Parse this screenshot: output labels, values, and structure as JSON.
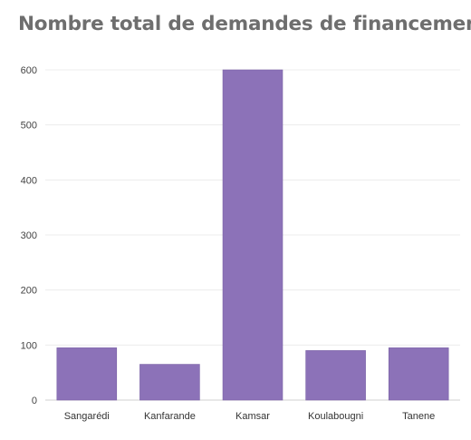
{
  "chart_data": {
    "type": "bar",
    "title": "Nombre total de demandes de financement",
    "categories": [
      "Sangarédi",
      "Kanfarande",
      "Kamsar",
      "Koulabougni",
      "Tanene"
    ],
    "values": [
      95,
      65,
      600,
      90,
      95
    ],
    "ylim": [
      0,
      600
    ],
    "yticks": [
      0,
      100,
      200,
      300,
      400,
      500,
      600
    ],
    "grid": true,
    "legend": "none",
    "colors": {
      "bar": "#8c72b8",
      "bar_edge": "#7a62a6"
    }
  }
}
